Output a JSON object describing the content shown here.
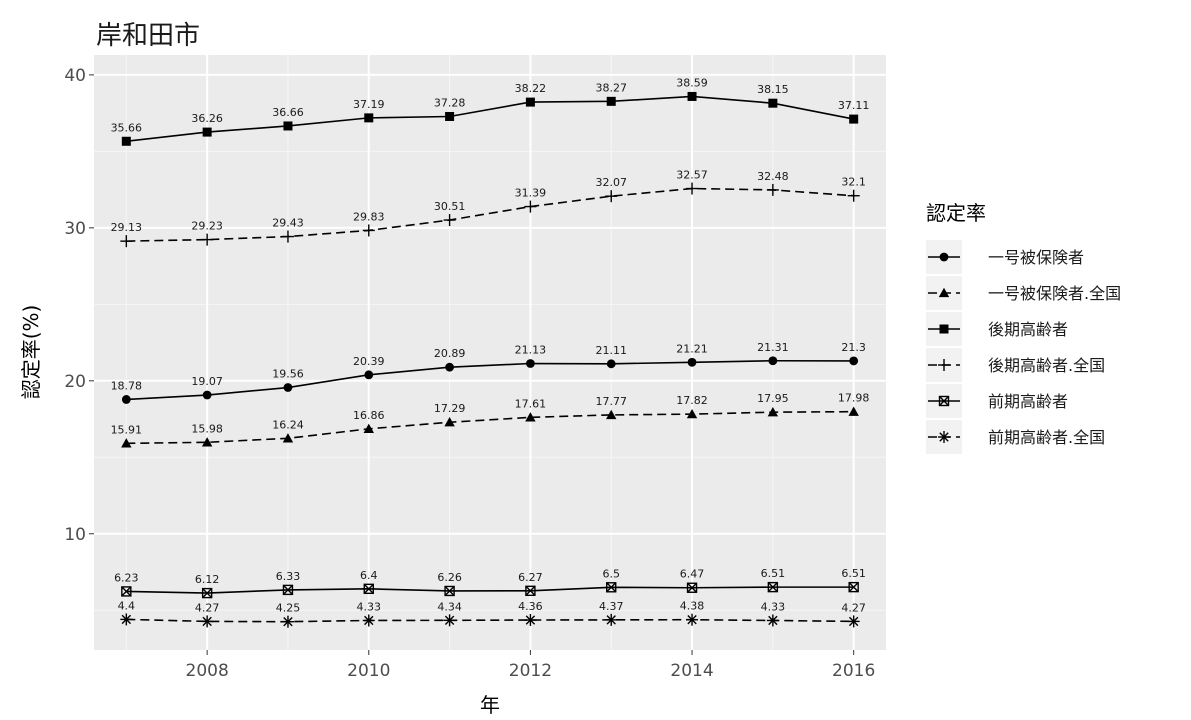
{
  "chart_data": {
    "type": "line",
    "title": "岸和田市",
    "xlabel": "年",
    "ylabel": "認定率(%)",
    "x": [
      2007,
      2008,
      2009,
      2010,
      2011,
      2012,
      2013,
      2014,
      2015,
      2016
    ],
    "xticks": [
      2008,
      2010,
      2012,
      2014,
      2016
    ],
    "yticks": [
      10,
      20,
      30,
      40
    ],
    "xlim": [
      2006.6,
      2016.4
    ],
    "ylim": [
      2.4,
      41.3
    ],
    "grid": true,
    "legend": {
      "title": "認定率",
      "position": "right"
    },
    "series": [
      {
        "name": "一号被保険者",
        "marker": "circle",
        "dash": "solid",
        "values": [
          18.78,
          19.07,
          19.56,
          20.39,
          20.89,
          21.13,
          21.11,
          21.21,
          21.31,
          21.3
        ],
        "labels": [
          "18.78",
          "19.07",
          "19.56",
          "20.39",
          "20.89",
          "21.13",
          "21.11",
          "21.21",
          "21.31",
          "21.3"
        ]
      },
      {
        "name": "一号被保険者.全国",
        "marker": "triangle",
        "dash": "dashed",
        "values": [
          15.91,
          15.98,
          16.24,
          16.86,
          17.29,
          17.61,
          17.77,
          17.82,
          17.95,
          17.98
        ],
        "labels": [
          "15.91",
          "15.98",
          "16.24",
          "16.86",
          "17.29",
          "17.61",
          "17.77",
          "17.82",
          "17.95",
          "17.98"
        ]
      },
      {
        "name": "後期高齢者",
        "marker": "square",
        "dash": "solid",
        "values": [
          35.66,
          36.26,
          36.66,
          37.19,
          37.28,
          38.22,
          38.27,
          38.59,
          38.15,
          37.11
        ],
        "labels": [
          "35.66",
          "36.26",
          "36.66",
          "37.19",
          "37.28",
          "38.22",
          "38.27",
          "38.59",
          "38.15",
          "37.11"
        ]
      },
      {
        "name": "後期高齢者.全国",
        "marker": "plus",
        "dash": "dashed",
        "values": [
          29.13,
          29.23,
          29.43,
          29.83,
          30.51,
          31.39,
          32.07,
          32.57,
          32.48,
          32.1
        ],
        "labels": [
          "29.13",
          "29.23",
          "29.43",
          "29.83",
          "30.51",
          "31.39",
          "32.07",
          "32.57",
          "32.48",
          "32.1"
        ]
      },
      {
        "name": "前期高齢者",
        "marker": "boxx",
        "dash": "solid",
        "values": [
          6.23,
          6.12,
          6.33,
          6.4,
          6.26,
          6.27,
          6.5,
          6.47,
          6.51,
          6.51
        ],
        "labels": [
          "6.23",
          "6.12",
          "6.33",
          "6.4",
          "6.26",
          "6.27",
          "6.5",
          "6.47",
          "6.51",
          "6.51"
        ]
      },
      {
        "name": "前期高齢者.全国",
        "marker": "star",
        "dash": "dashed",
        "values": [
          4.4,
          4.27,
          4.25,
          4.33,
          4.34,
          4.36,
          4.37,
          4.38,
          4.33,
          4.27
        ],
        "labels": [
          "4.4",
          "4.27",
          "4.25",
          "4.33",
          "4.34",
          "4.36",
          "4.37",
          "4.38",
          "4.33",
          "4.27"
        ]
      }
    ]
  }
}
